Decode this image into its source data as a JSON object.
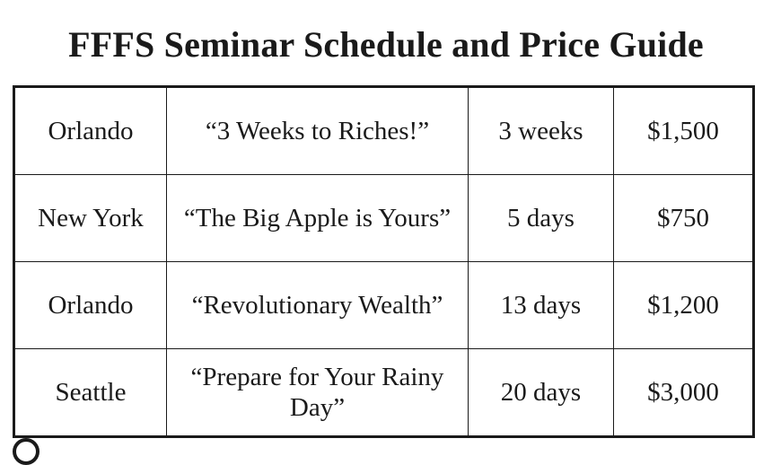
{
  "title": "FFFS Seminar Schedule and Price Guide",
  "rows": [
    {
      "city": "Orlando",
      "seminar": "“3 Weeks to Riches!”",
      "duration": "3 weeks",
      "price": "$1,500"
    },
    {
      "city": "New York",
      "seminar": "“The Big Apple is Yours”",
      "duration": "5 days",
      "price": "$750"
    },
    {
      "city": "Orlando",
      "seminar": "“Revolutionary Wealth”",
      "duration": "13 days",
      "price": "$1,200"
    },
    {
      "city": "Seattle",
      "seminar": "“Prepare for Your Rainy Day”",
      "duration": "20 days",
      "price": "$3,000"
    }
  ]
}
